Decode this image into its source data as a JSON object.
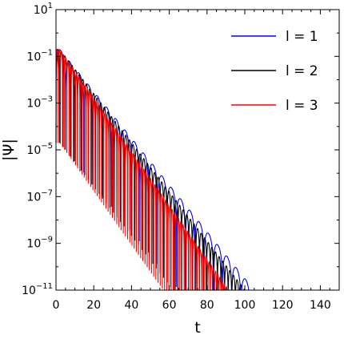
{
  "chart_data": {
    "type": "line",
    "xlabel": "t",
    "ylabel": "|Ψ|",
    "xlim": [
      0,
      150
    ],
    "ylim": [
      1e-11,
      10
    ],
    "yscale": "log",
    "x_ticks": [
      0,
      20,
      40,
      60,
      80,
      100,
      120,
      140
    ],
    "x_tick_labels": [
      "0",
      "20",
      "40",
      "60",
      "80",
      "100",
      "120",
      "140"
    ],
    "y_ticks": [
      1e-11,
      1e-09,
      1e-07,
      1e-05,
      0.001,
      0.1,
      10
    ],
    "y_tick_labels": [
      {
        "base": "10",
        "exp": "−11"
      },
      {
        "base": "10",
        "exp": "−9"
      },
      {
        "base": "10",
        "exp": "−7"
      },
      {
        "base": "10",
        "exp": "−5"
      },
      {
        "base": "10",
        "exp": "−3"
      },
      {
        "base": "10",
        "exp": "−1"
      },
      {
        "base": "10",
        "exp": "1"
      }
    ],
    "legend_placement": "top-right",
    "grid": false,
    "series": [
      {
        "name": "l = 1",
        "color": "#0000ff",
        "t_start": 0,
        "t_end": 150,
        "peak": 0.2,
        "decay_per_unit_t": 0.1,
        "oscillation_period": 4.9
      },
      {
        "name": "l = 2",
        "color": "#000000",
        "t_start": 0,
        "t_end": 100,
        "peak": 0.2,
        "decay_per_unit_t": 0.105,
        "oscillation_period": 1.9
      },
      {
        "name": "l = 3",
        "color": "#ff0000",
        "t_start": 0,
        "t_end": 92,
        "peak": 0.2,
        "decay_per_unit_t": 0.115,
        "oscillation_period": 1.15
      }
    ]
  }
}
